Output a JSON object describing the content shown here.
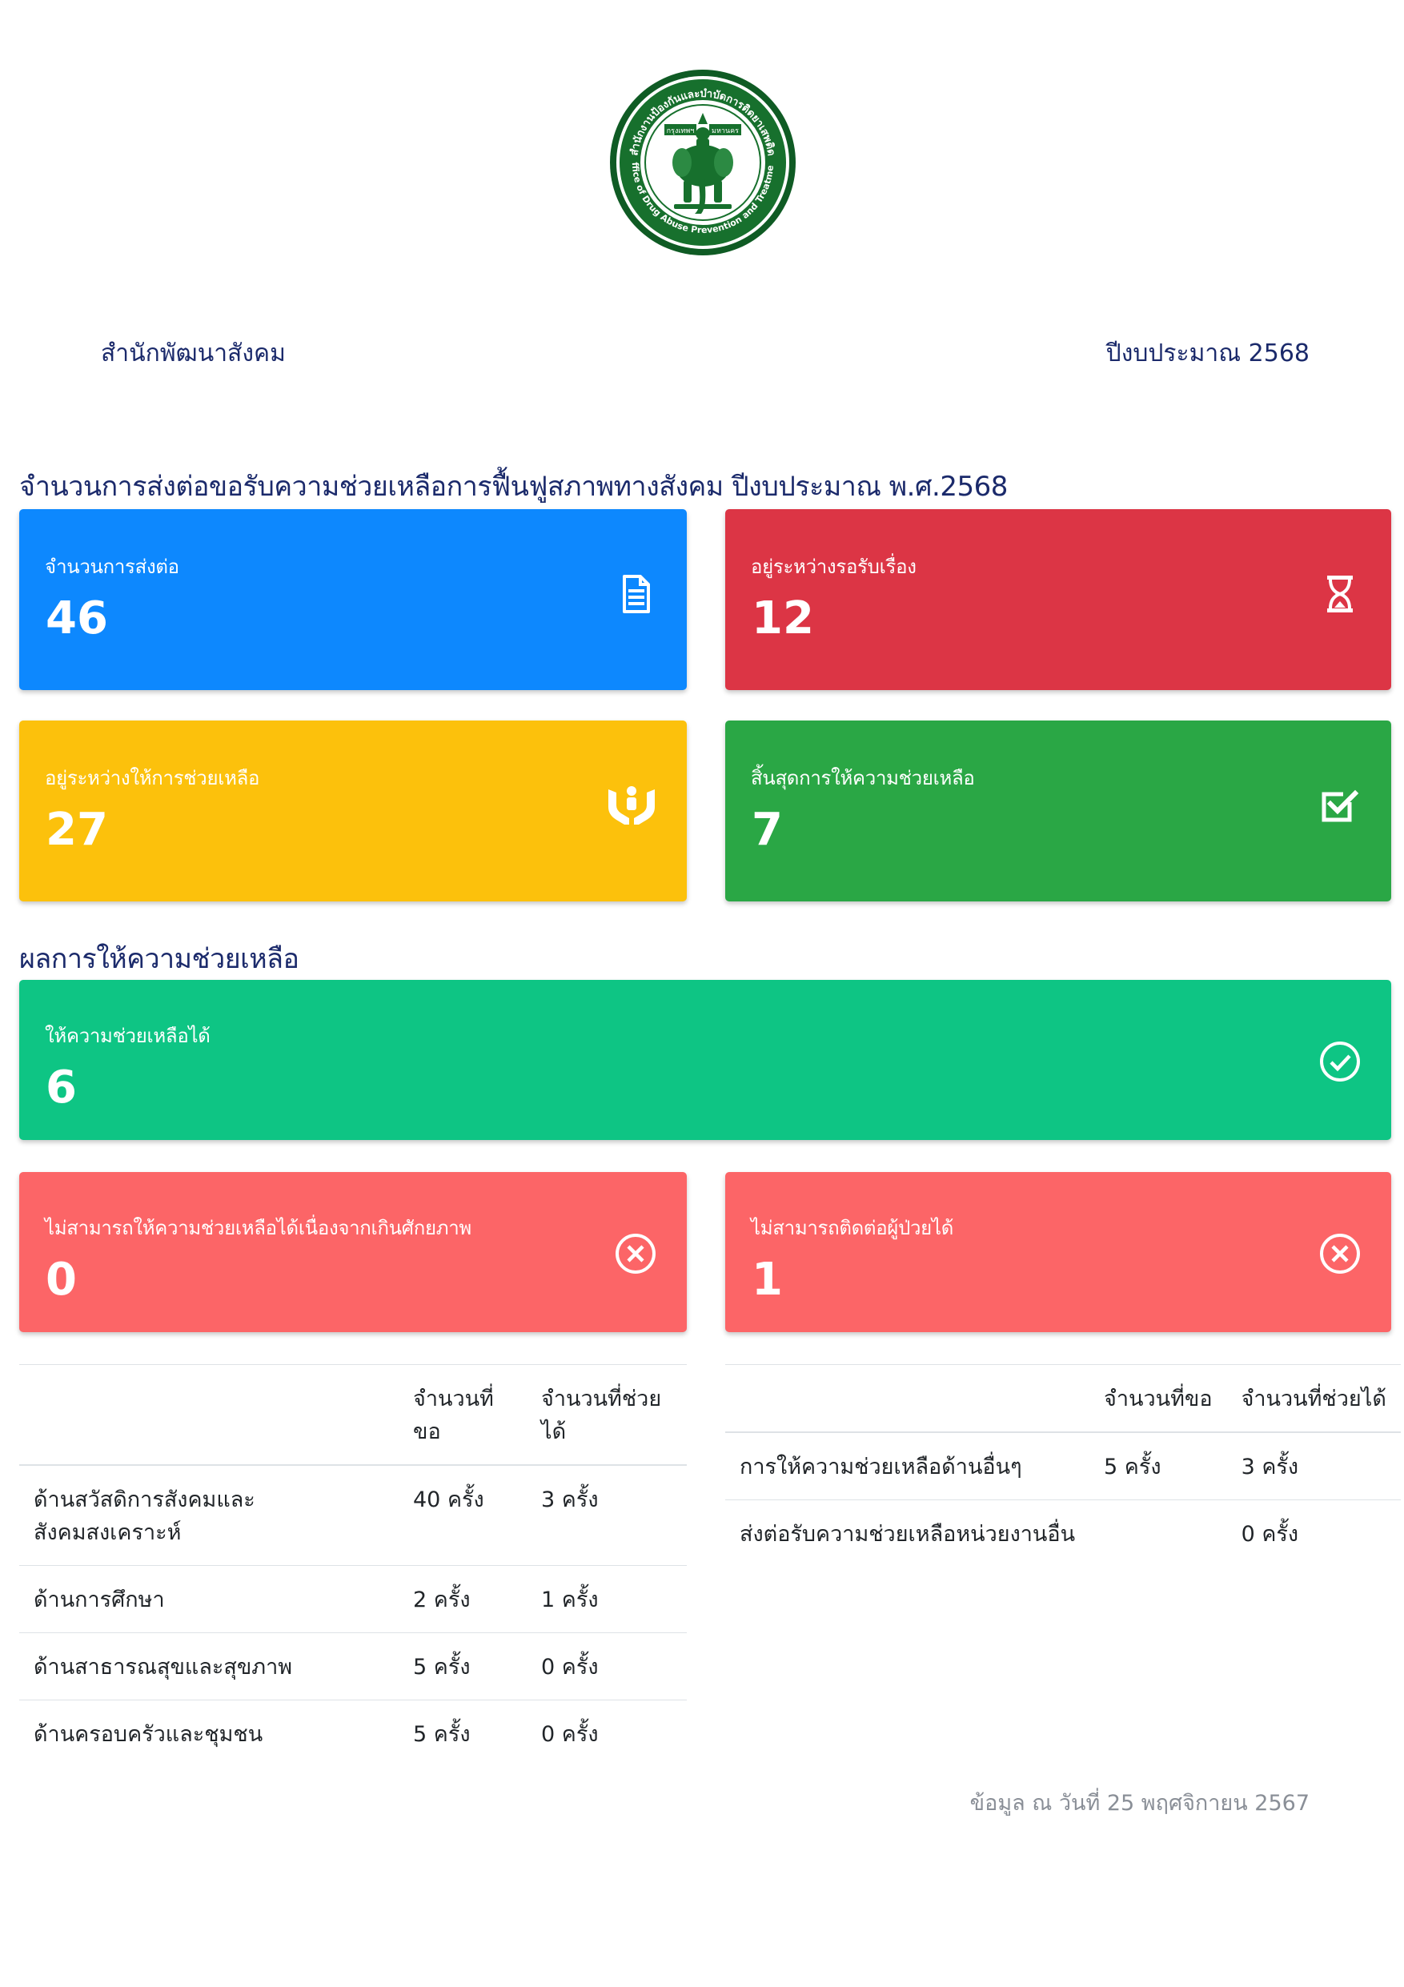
{
  "logo": {
    "ring_text_th": "สำนักงานป้องกันและบำบัดการติดยาเสพติด",
    "ring_text_en": "Office of Drug Abuse Prevention and Treatment",
    "banner_left": "กรุงเทพฯ",
    "banner_right": "มหานคร"
  },
  "header": {
    "org": "สำนักพัฒนาสังคม",
    "fiscal_year": "ปีงบประมาณ 2568"
  },
  "section1": {
    "title": "จำนวนการส่งต่อขอรับความช่วยเหลือการฟื้นฟูสภาพทางสังคม ปีงบประมาณ พ.ศ.2568"
  },
  "cards": {
    "referrals": {
      "label": "จำนวนการส่งต่อ",
      "value": "46",
      "icon": "document-icon",
      "color": "#0d88fe"
    },
    "pending": {
      "label": "อยู่ระหว่างรอรับเรื่อง",
      "value": "12",
      "icon": "hourglass-icon",
      "color": "#dc3545"
    },
    "in_progress": {
      "label": "อยู่ระหว่างให้การช่วยเหลือ",
      "value": "27",
      "icon": "hands-helping-icon",
      "color": "#fcc10c"
    },
    "completed": {
      "label": "สิ้นสุดการให้ความช่วยเหลือ",
      "value": "7",
      "icon": "checkbox-icon",
      "color": "#2aa745"
    }
  },
  "section2": {
    "title": "ผลการให้ความช่วยเหลือ"
  },
  "results": {
    "helped": {
      "label": "ให้ความช่วยเหลือได้",
      "value": "6",
      "icon": "check-circle-icon",
      "color": "#0ec584"
    },
    "beyond_capacity": {
      "label": "ไม่สามารถให้ความช่วยเหลือได้เนื่องจากเกินศักยภาพ",
      "value": "0",
      "icon": "x-circle-icon",
      "color": "#fc6567"
    },
    "no_contact": {
      "label": "ไม่สามารถติดต่อผู้ป่วยได้",
      "value": "1",
      "icon": "x-circle-icon",
      "color": "#fc6567"
    }
  },
  "table_left": {
    "headers": [
      "",
      "จำนวนที่ขอ",
      "จำนวนที่ช่วยได้"
    ],
    "rows": [
      [
        "ด้านสวัสดิการสังคมและสังคมสงเคราะห์",
        "40 ครั้ง",
        "3 ครั้ง"
      ],
      [
        "ด้านการศึกษา",
        "2 ครั้ง",
        "1 ครั้ง"
      ],
      [
        "ด้านสาธารณสุขและสุขภาพ",
        "5 ครั้ง",
        "0 ครั้ง"
      ],
      [
        "ด้านครอบครัวและชุมชน",
        "5 ครั้ง",
        "0 ครั้ง"
      ]
    ]
  },
  "table_right": {
    "headers": [
      "",
      "จำนวนที่ขอ",
      "จำนวนที่ช่วยได้"
    ],
    "rows": [
      [
        "การให้ความช่วยเหลือด้านอื่นๆ",
        "5 ครั้ง",
        "3 ครั้ง"
      ],
      [
        "ส่งต่อรับความช่วยเหลือหน่วยงานอื่น",
        "",
        "0 ครั้ง"
      ]
    ]
  },
  "footer": {
    "note": "ข้อมูล ณ วันที่ 25 พฤศจิกายน 2567"
  }
}
